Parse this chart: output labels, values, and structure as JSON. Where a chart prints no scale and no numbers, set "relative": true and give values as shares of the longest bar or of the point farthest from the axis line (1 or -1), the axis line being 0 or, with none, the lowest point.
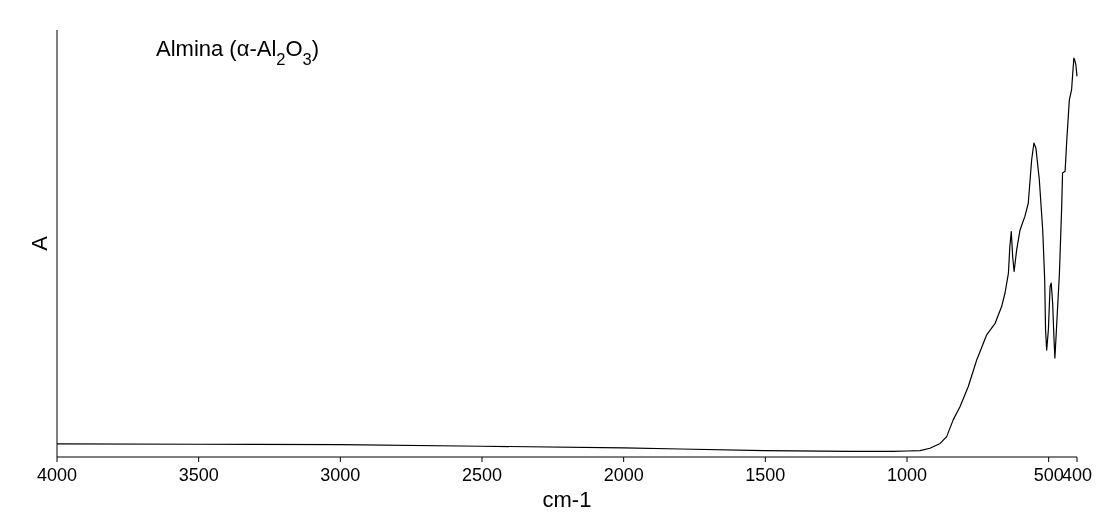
{
  "chart_data": {
    "type": "line",
    "relative": true,
    "xlabel": "cm-1",
    "ylabel": "A",
    "annotations": [
      "Almina (α-Al$_{2}$O$_{3}$)"
    ],
    "xlim": [
      4000,
      400
    ],
    "xticks": [
      4000,
      3500,
      3000,
      2500,
      2000,
      1500,
      1000,
      500,
      400
    ],
    "series": [
      {
        "color": "#000000",
        "x": [
          4000,
          3500,
          3000,
          2500,
          2000,
          1800,
          1500,
          1200,
          1050,
          1000,
          954,
          919,
          883,
          860,
          837,
          813,
          784,
          754,
          719,
          689,
          666,
          654,
          642,
          637,
          632,
          627,
          622,
          613,
          601,
          584,
          572,
          560,
          552,
          545,
          533,
          521,
          514,
          511,
          507,
          501,
          495,
          491,
          486,
          481,
          478,
          472,
          462,
          454,
          451,
          442,
          436,
          427,
          419,
          415,
          411,
          407,
          404,
          400
        ],
        "values": [
          0.033,
          0.032,
          0.031,
          0.027,
          0.023,
          0.02,
          0.016,
          0.014,
          0.014,
          0.015,
          0.016,
          0.022,
          0.034,
          0.051,
          0.093,
          0.126,
          0.176,
          0.243,
          0.306,
          0.335,
          0.377,
          0.411,
          0.461,
          0.528,
          0.565,
          0.502,
          0.465,
          0.519,
          0.569,
          0.603,
          0.636,
          0.745,
          0.787,
          0.774,
          0.695,
          0.569,
          0.444,
          0.319,
          0.268,
          0.319,
          0.427,
          0.436,
          0.386,
          0.293,
          0.248,
          0.327,
          0.461,
          0.628,
          0.712,
          0.716,
          0.795,
          0.895,
          0.921,
          0.962,
          1,
          0.992,
          0.983,
          0.954
        ]
      }
    ]
  }
}
